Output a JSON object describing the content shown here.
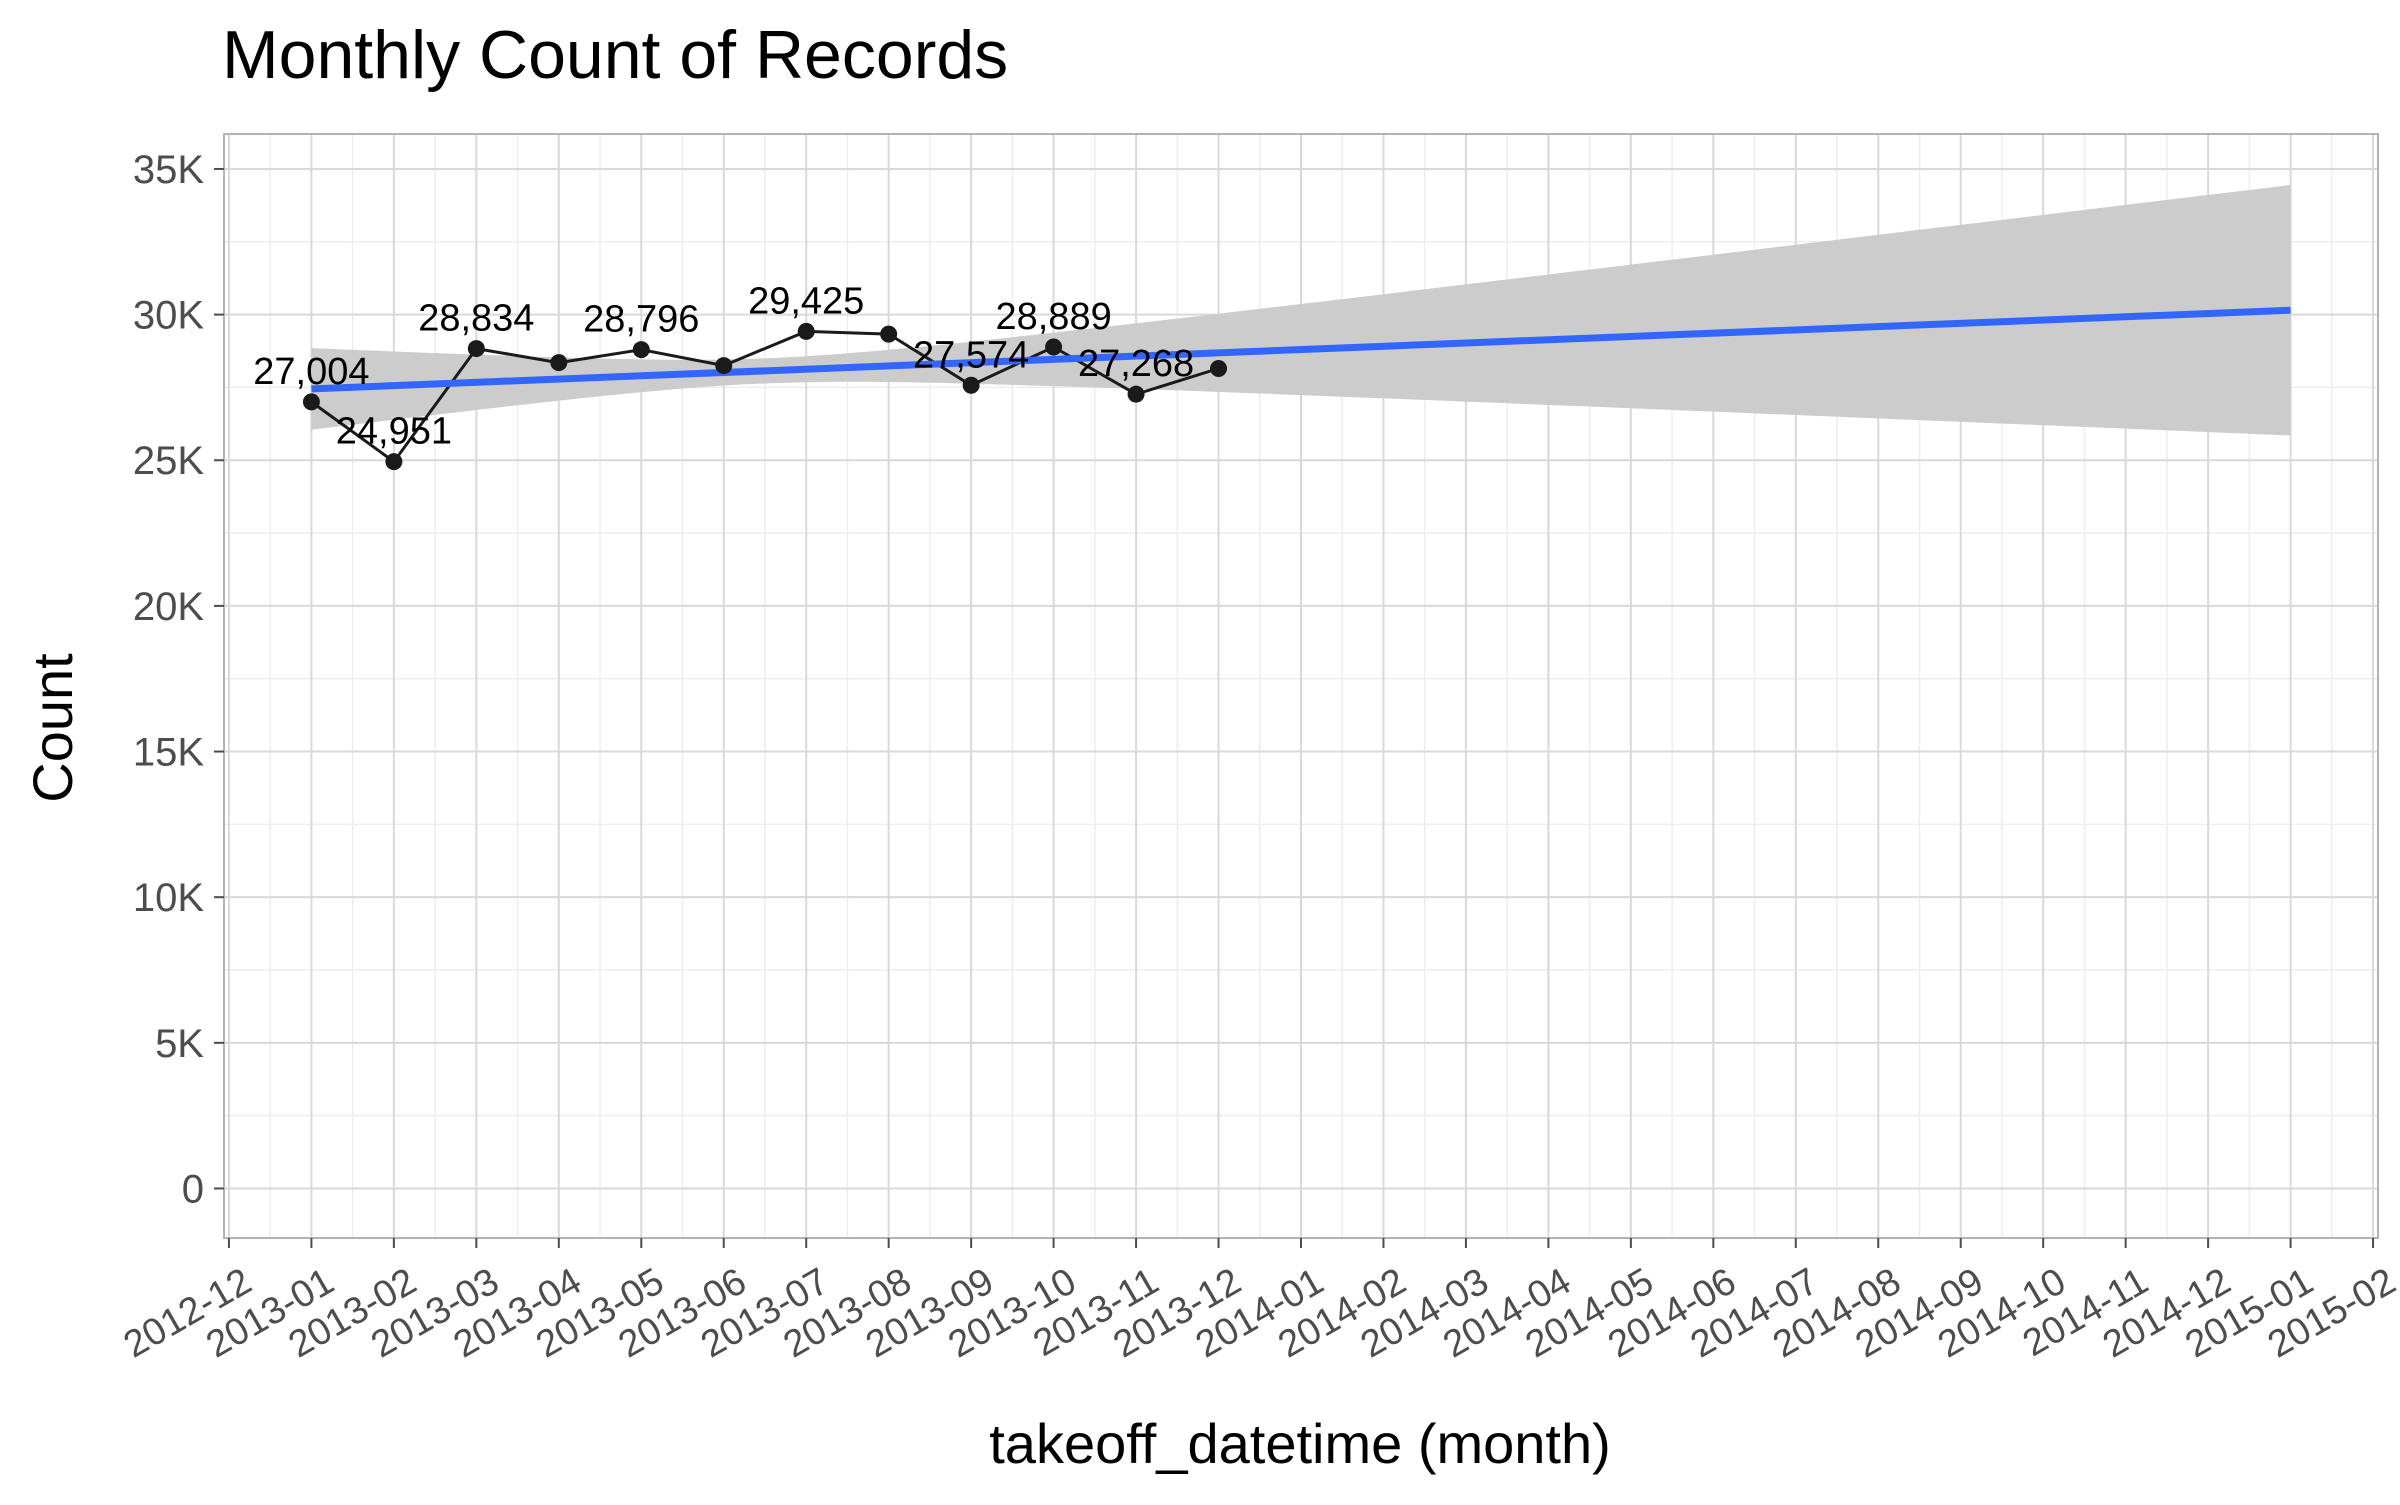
{
  "chart_data": {
    "type": "line",
    "title": "Monthly Count of Records",
    "xlabel": "takeoff_datetime (month)",
    "ylabel": "Count",
    "x_range": [
      "2012-12",
      "2015-02"
    ],
    "x_ticks": [
      "2012-12",
      "2013-01",
      "2013-02",
      "2013-03",
      "2013-04",
      "2013-05",
      "2013-06",
      "2013-07",
      "2013-08",
      "2013-09",
      "2013-10",
      "2013-11",
      "2013-12",
      "2014-01",
      "2014-02",
      "2014-03",
      "2014-04",
      "2014-05",
      "2014-06",
      "2014-07",
      "2014-08",
      "2014-09",
      "2014-10",
      "2014-11",
      "2014-12",
      "2015-01",
      "2015-02"
    ],
    "y_ticks": [
      {
        "value": 0,
        "label": "0"
      },
      {
        "value": 5000,
        "label": "5K"
      },
      {
        "value": 10000,
        "label": "10K"
      },
      {
        "value": 15000,
        "label": "15K"
      },
      {
        "value": 20000,
        "label": "20K"
      },
      {
        "value": 25000,
        "label": "25K"
      },
      {
        "value": 30000,
        "label": "30K"
      },
      {
        "value": 35000,
        "label": "35K"
      }
    ],
    "ylim": [
      -1700,
      36200
    ],
    "grid": true,
    "series": [
      {
        "x": [
          "2013-01",
          "2013-02",
          "2013-03",
          "2013-04",
          "2013-05",
          "2013-06",
          "2013-07",
          "2013-08",
          "2013-09",
          "2013-10",
          "2013-11",
          "2013-12"
        ],
        "values": [
          27004,
          24951,
          28834,
          28350,
          28796,
          28250,
          29425,
          29330,
          27574,
          28889,
          27268,
          28150
        ]
      }
    ],
    "data_labels": [
      {
        "x": "2013-01",
        "text": "27,004"
      },
      {
        "x": "2013-02",
        "text": "24,951"
      },
      {
        "x": "2013-03",
        "text": "28,834"
      },
      {
        "x": "2013-05",
        "text": "28,796"
      },
      {
        "x": "2013-07",
        "text": "29,425"
      },
      {
        "x": "2013-09",
        "text": "27,574"
      },
      {
        "x": "2013-10",
        "text": "28,889"
      },
      {
        "x": "2013-11",
        "text": "27,268"
      }
    ],
    "trend": {
      "type": "linear",
      "x": [
        "2013-01",
        "2015-01"
      ],
      "values": [
        27450,
        30150
      ],
      "band_lower": [
        26050,
        25850
      ],
      "band_upper": [
        28850,
        34450
      ]
    },
    "colors": {
      "line": "#1a1a1a",
      "points": "#1a1a1a",
      "trend": "#3366ff",
      "band": "#cccccc",
      "grid_major": "#d9d9d9",
      "grid_minor": "#eeeeee",
      "axis_text": "#4d4d4d",
      "panel_border": "#b3b3b3"
    }
  }
}
